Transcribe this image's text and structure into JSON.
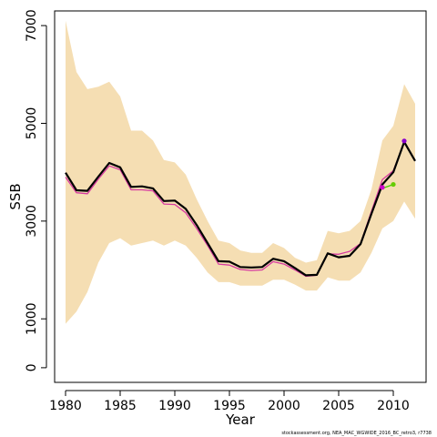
{
  "chart_data": {
    "type": "line",
    "xlabel": "Year",
    "ylabel": "SSB",
    "xlim": [
      1979,
      2013
    ],
    "ylim": [
      -300,
      7300
    ],
    "x_ticks": [
      1980,
      1985,
      1990,
      1995,
      2000,
      2005,
      2010
    ],
    "y_ticks": [
      0,
      1000,
      3000,
      5000,
      7000
    ],
    "grid": false,
    "band": {
      "color": "#F5DEB3",
      "x": [
        1980,
        1981,
        1982,
        1983,
        1984,
        1985,
        1986,
        1987,
        1988,
        1989,
        1990,
        1991,
        1992,
        1993,
        1994,
        1995,
        1996,
        1997,
        1998,
        1999,
        2000,
        2001,
        2002,
        2003,
        2004,
        2005,
        2006,
        2007,
        2008,
        2009,
        2010,
        2011,
        2012
      ],
      "upper": [
        7100,
        6050,
        5700,
        5750,
        5850,
        5550,
        4850,
        4850,
        4650,
        4250,
        4200,
        3950,
        3450,
        3000,
        2600,
        2550,
        2400,
        2350,
        2350,
        2550,
        2450,
        2250,
        2150,
        2200,
        2800,
        2750,
        2800,
        3000,
        3650,
        4650,
        4950,
        5800,
        5400
      ],
      "lower": [
        900,
        1150,
        1550,
        2150,
        2550,
        2650,
        2500,
        2550,
        2600,
        2500,
        2600,
        2500,
        2250,
        1950,
        1750,
        1750,
        1680,
        1680,
        1680,
        1800,
        1800,
        1700,
        1580,
        1580,
        1850,
        1780,
        1780,
        1950,
        2350,
        2850,
        3000,
        3400,
        3050
      ]
    },
    "series": [
      {
        "color": "#D63AA0",
        "x": [
          1980,
          1981,
          1982,
          1983,
          1984,
          1985,
          1986,
          1987,
          1988,
          1989,
          1990,
          1991,
          1992,
          1993,
          1994,
          1995,
          1996,
          1997,
          1998,
          1999,
          2000,
          2001,
          2002,
          2003,
          2004,
          2005,
          2006,
          2007,
          2008,
          2009,
          2010,
          2011
        ],
        "values": [
          3900,
          3580,
          3560,
          3860,
          4130,
          4050,
          3640,
          3640,
          3620,
          3350,
          3340,
          3170,
          2850,
          2500,
          2120,
          2100,
          2010,
          1990,
          2000,
          2170,
          2120,
          2000,
          1870,
          1890,
          2330,
          2320,
          2380,
          2540,
          3200,
          3850,
          4030,
          4600
        ]
      },
      {
        "color": "#000000",
        "x": [
          1980,
          1981,
          1982,
          1983,
          1984,
          1985,
          1986,
          1987,
          1988,
          1989,
          1990,
          1991,
          1992,
          1993,
          1994,
          1995,
          1996,
          1997,
          1998,
          1999,
          2000,
          2001,
          2002,
          2003,
          2004,
          2005,
          2006,
          2007,
          2008,
          2009,
          2010,
          2011,
          2012
        ],
        "values": [
          3990,
          3630,
          3620,
          3910,
          4190,
          4100,
          3700,
          3710,
          3670,
          3410,
          3420,
          3250,
          2920,
          2550,
          2180,
          2170,
          2060,
          2050,
          2060,
          2230,
          2180,
          2040,
          1890,
          1900,
          2340,
          2260,
          2290,
          2530,
          3150,
          3750,
          4000,
          4620,
          4230
        ]
      },
      {
        "color": "#44CC00",
        "x": [
          2009,
          2010
        ],
        "values": [
          3670,
          3750
        ]
      }
    ],
    "points": [
      {
        "x": 2009,
        "y": 3690,
        "color": "#CC00CC"
      },
      {
        "x": 2010,
        "y": 3750,
        "color": "#66CC00"
      },
      {
        "x": 2011,
        "y": 4640,
        "color": "#8800CC"
      }
    ],
    "footer": "stockassessment.org, NEA_MAC_WGWIDE_2016_BC_retro3, r7738"
  }
}
